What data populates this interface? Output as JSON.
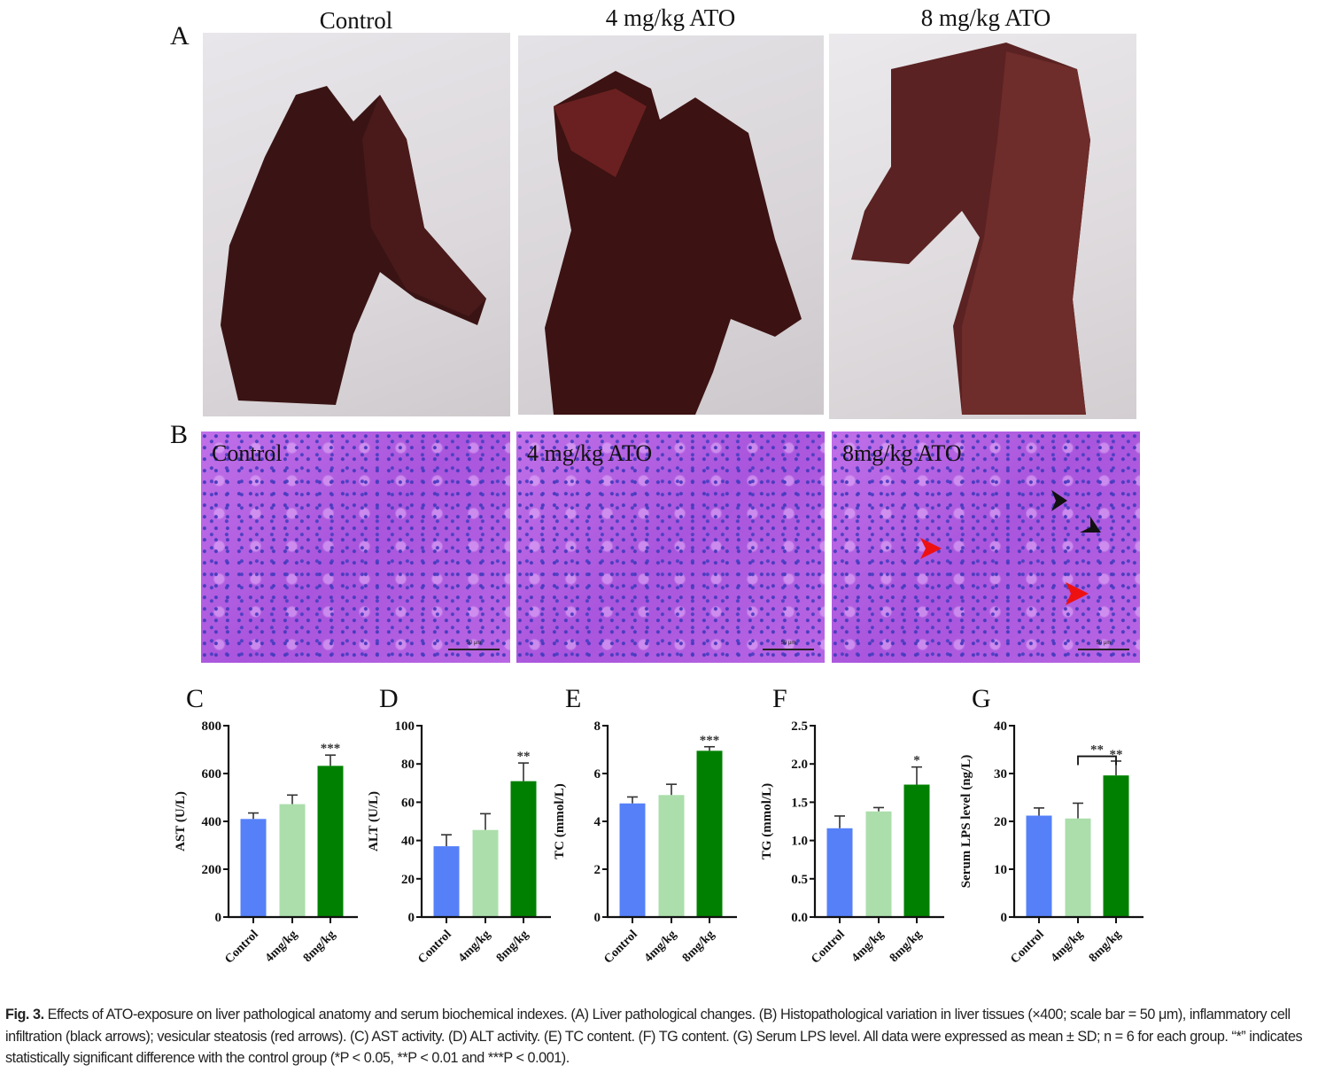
{
  "panels": {
    "A": {
      "letter": "A",
      "titles": [
        "Control",
        "4 mg/kg ATO",
        "8 mg/kg ATO"
      ]
    },
    "B": {
      "letter": "B",
      "labels": [
        "Control",
        "4 mg/kg ATO",
        "8mg/kg ATO"
      ],
      "scale_bar": "50 μm"
    }
  },
  "colors": {
    "control": "#5580f8",
    "low_dose": "#abdeab",
    "high_dose": "#008000",
    "black_arrow": "#111111",
    "red_arrow": "#ee1111"
  },
  "chart_data": [
    {
      "letter": "C",
      "type": "bar",
      "categories": [
        "Control",
        "4mg/kg",
        "8mg/kg"
      ],
      "values": [
        410,
        472,
        632
      ],
      "errors": [
        25,
        38,
        45
      ],
      "ylabel": "AST (U/L)",
      "ylim": [
        0,
        800
      ],
      "yticks": [
        "0",
        "200",
        "400",
        "600",
        "800"
      ],
      "significance": [
        "",
        "",
        "***"
      ]
    },
    {
      "letter": "D",
      "type": "bar",
      "categories": [
        "Control",
        "4mg/kg",
        "8mg/kg"
      ],
      "values": [
        37,
        45.5,
        71
      ],
      "errors": [
        6,
        8.5,
        9.5
      ],
      "ylabel": "ALT (U/L)",
      "ylim": [
        0,
        100
      ],
      "yticks": [
        "0",
        "20",
        "40",
        "60",
        "80",
        "100"
      ],
      "significance": [
        "",
        "",
        "**"
      ]
    },
    {
      "letter": "E",
      "type": "bar",
      "categories": [
        "Control",
        "4mg/kg",
        "8mg/kg"
      ],
      "values": [
        4.75,
        5.1,
        6.95
      ],
      "errors": [
        0.27,
        0.45,
        0.17
      ],
      "ylabel": "TC (mmol/L)",
      "ylim": [
        0,
        8
      ],
      "yticks": [
        "0",
        "2",
        "4",
        "6",
        "8"
      ],
      "significance": [
        "",
        "",
        "***"
      ]
    },
    {
      "letter": "F",
      "type": "bar",
      "categories": [
        "Control",
        "4mg/kg",
        "8mg/kg"
      ],
      "values": [
        1.16,
        1.38,
        1.73
      ],
      "errors": [
        0.16,
        0.05,
        0.23
      ],
      "ylabel": "TG (mmol/L)",
      "ylim": [
        0,
        2.5
      ],
      "yticks": [
        "0.0",
        "0.5",
        "1.0",
        "1.5",
        "2.0",
        "2.5"
      ],
      "significance": [
        "",
        "",
        "*"
      ]
    },
    {
      "letter": "G",
      "type": "bar",
      "categories": [
        "Control",
        "4mg/kg",
        "8mg/kg"
      ],
      "values": [
        21.2,
        20.6,
        29.6
      ],
      "errors": [
        1.6,
        3.2,
        3.0
      ],
      "ylabel": "Serum LPS level (ng/L)",
      "ylim": [
        0,
        40
      ],
      "yticks": [
        "0",
        "10",
        "20",
        "30",
        "40"
      ],
      "significance": [
        "",
        "",
        "**"
      ],
      "bracket": {
        "from": "4mg/kg",
        "to": "8mg/kg",
        "label": "**"
      }
    }
  ],
  "caption": {
    "fig": "Fig. 3.",
    "text": " Effects of ATO-exposure on liver pathological anatomy and serum biochemical indexes. (A) Liver pathological changes. (B) Histopathological variation in liver tissues (×400; scale bar = 50 μm), inflammatory cell infiltration (black arrows); vesicular steatosis (red arrows). (C) AST activity. (D) ALT activity. (E) TC content. (F) TG content. (G) Serum LPS level. All data were expressed as mean ± SD; n = 6 for each group. “*” indicates statistically significant difference with the control group (*P < 0.05, **P < 0.01 and ***P < 0.001)."
  }
}
